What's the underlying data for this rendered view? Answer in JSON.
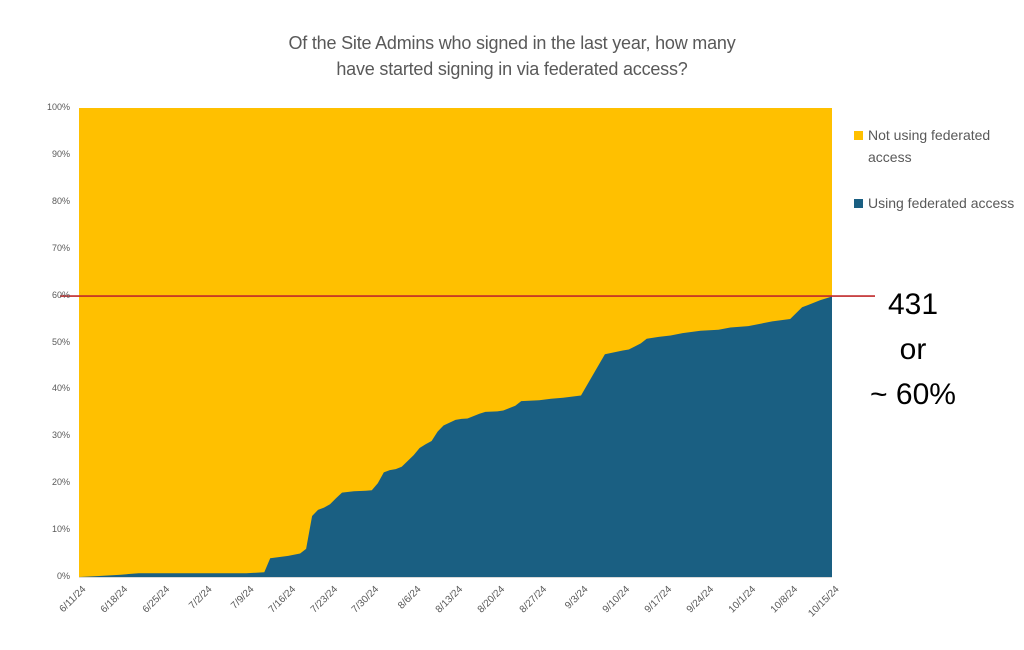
{
  "chart_data": {
    "type": "area",
    "stacked": "percent",
    "title": "Of the Site Admins who signed in the last year, how many have started signing in via federated access?",
    "title_lines": [
      "Of the Site Admins who signed in the last year, how many",
      "have started signing in via federated access?"
    ],
    "xlabel": "",
    "ylabel": "",
    "ylim": [
      0,
      100
    ],
    "y_ticks": [
      "0%",
      "10%",
      "20%",
      "30%",
      "40%",
      "50%",
      "60%",
      "70%",
      "80%",
      "90%",
      "100%"
    ],
    "x_ticks": [
      "6/11/24",
      "6/18/24",
      "6/25/24",
      "7/2/24",
      "7/9/24",
      "7/16/24",
      "7/23/24",
      "7/30/24",
      "8/6/24",
      "8/13/24",
      "8/20/24",
      "8/27/24",
      "9/3/24",
      "9/10/24",
      "9/17/24",
      "9/24/24",
      "10/1/24",
      "10/8/24",
      "10/15/24"
    ],
    "x_day_offsets": [
      0,
      3,
      7,
      10,
      14,
      17,
      21,
      24,
      28,
      31,
      32,
      35,
      37,
      38,
      39,
      40,
      41,
      42,
      43,
      44,
      46,
      48,
      49,
      50,
      51,
      52,
      53,
      54,
      56,
      57,
      58,
      59,
      60,
      61,
      63,
      64,
      65,
      67,
      68,
      70,
      71,
      73,
      74,
      77,
      79,
      81,
      84,
      88,
      91,
      92,
      94,
      95,
      97,
      99,
      101,
      104,
      107,
      109,
      112,
      116,
      119,
      121,
      122,
      124,
      126
    ],
    "series": [
      {
        "name": "Using federated access",
        "color": "#1a5f82",
        "values": [
          0.0,
          0.2,
          0.5,
          0.8,
          0.8,
          0.8,
          0.8,
          0.8,
          0.8,
          1.0,
          4.0,
          4.5,
          5.0,
          6.0,
          13.0,
          14.3,
          14.8,
          15.5,
          16.8,
          18.0,
          18.3,
          18.4,
          18.5,
          20.0,
          22.3,
          22.8,
          23.0,
          23.5,
          26.0,
          27.5,
          28.3,
          29.0,
          31.0,
          32.3,
          33.5,
          33.7,
          33.8,
          34.8,
          35.2,
          35.3,
          35.5,
          36.5,
          37.5,
          37.7,
          38.0,
          38.2,
          38.7,
          47.5,
          48.3,
          48.5,
          49.8,
          50.8,
          51.2,
          51.5,
          52.0,
          52.5,
          52.7,
          53.2,
          53.5,
          54.5,
          55.0,
          57.5,
          58.0,
          59.0,
          59.8
        ]
      },
      {
        "name": "Not using federated access",
        "color": "#ffc000",
        "values": "remainder to 100%"
      }
    ],
    "legend_position": "right",
    "grid": false,
    "reference_line": {
      "y": 60,
      "color": "#c0282a",
      "label": "431 or ~ 60%"
    }
  },
  "legend": {
    "items": [
      {
        "label": "Not using federated access",
        "color": "#ffc000"
      },
      {
        "label": "Using federated access",
        "color": "#1a5f82"
      }
    ]
  },
  "annotation": {
    "line1": "431",
    "line2": "or",
    "line3": "~ 60%"
  }
}
